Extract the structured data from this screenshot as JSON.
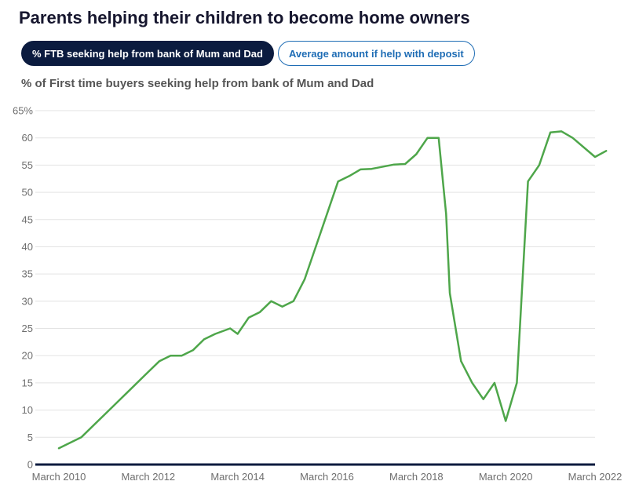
{
  "header": {
    "title": "Parents helping their children to become home owners"
  },
  "tabs": [
    {
      "label": "% FTB seeking help from bank of Mum and Dad",
      "active": true
    },
    {
      "label": "Average amount if help with deposit",
      "active": false
    }
  ],
  "colors": {
    "line": "#4ea64a",
    "grid": "#e3e3e3",
    "axis": "#0b1b3f",
    "active_tab": "#0b1b3f",
    "inactive_tab_border": "#1f6db5"
  },
  "chart_data": {
    "type": "line",
    "title": "% of First time buyers seeking help from bank of Mum and Dad",
    "xlabel": "",
    "ylabel": "",
    "ylim": [
      0,
      65
    ],
    "yticks": [
      0,
      5,
      10,
      15,
      20,
      25,
      30,
      35,
      40,
      45,
      50,
      55,
      60,
      65
    ],
    "ytick_labels": [
      "0",
      "5",
      "10",
      "15",
      "20",
      "25",
      "30",
      "35",
      "40",
      "45",
      "50",
      "55",
      "60",
      "65%"
    ],
    "xlim": [
      "2010-03",
      "2022-03"
    ],
    "xticks": [
      "2010-03",
      "2012-03",
      "2014-03",
      "2016-03",
      "2018-03",
      "2020-03",
      "2022-03"
    ],
    "xtick_labels": [
      "March 2010",
      "March 2012",
      "March 2014",
      "March 2016",
      "March 2018",
      "March 2020",
      "March 2022"
    ],
    "grid": true,
    "series": [
      {
        "x": [
          "2010-03",
          "2010-09",
          "2011-03",
          "2011-09",
          "2012-03",
          "2012-06",
          "2012-09",
          "2012-12",
          "2013-03",
          "2013-06",
          "2013-09",
          "2014-01",
          "2014-03",
          "2014-06",
          "2014-09",
          "2014-12",
          "2015-03",
          "2015-06",
          "2015-09",
          "2016-01",
          "2016-03",
          "2016-06",
          "2016-09",
          "2016-12",
          "2017-03",
          "2017-09",
          "2017-12",
          "2018-03",
          "2018-06",
          "2018-09",
          "2018-11",
          "2018-12",
          "2019-03",
          "2019-06",
          "2019-09",
          "2019-12",
          "2020-03",
          "2020-06",
          "2020-09",
          "2020-12",
          "2021-03",
          "2021-06",
          "2021-09",
          "2022-03",
          "2022-06"
        ],
        "y": [
          3,
          5,
          9,
          13,
          17,
          19,
          20,
          20,
          21,
          23,
          24,
          25,
          24,
          27,
          28,
          30,
          29,
          30,
          34,
          42,
          46,
          52,
          53,
          54.2,
          54.3,
          55.1,
          55.2,
          57,
          60,
          60,
          46,
          31.5,
          19,
          15,
          12,
          15,
          8,
          15,
          52,
          55,
          61,
          61.2,
          60,
          56.5,
          57.6
        ]
      }
    ]
  }
}
